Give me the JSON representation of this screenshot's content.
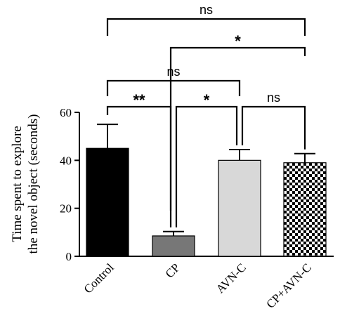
{
  "chart_data": {
    "type": "bar",
    "title": "",
    "xlabel": "",
    "ylabel_lines": [
      "Time spent to explore",
      "the novel object (seconds)"
    ],
    "ylim": [
      0,
      60
    ],
    "yticks": [
      0,
      20,
      40,
      60
    ],
    "categories": [
      "Control",
      "CP",
      "AVN-C",
      "CP+AVN-C"
    ],
    "values": [
      45,
      8.5,
      40,
      39
    ],
    "errors": [
      10,
      1.8,
      4.5,
      3.8
    ],
    "bar_colors": [
      "#000000",
      "#777777",
      "#d8d8d8",
      "checker"
    ],
    "grid": false,
    "legend": "none",
    "significance": [
      {
        "from": 0,
        "to": 1,
        "label": "**",
        "level": 1
      },
      {
        "from": 1,
        "to": 2,
        "label": "*",
        "level": 1
      },
      {
        "from": 2,
        "to": 3,
        "label": "ns",
        "level": 1
      },
      {
        "from": 0,
        "to": 2,
        "label": "ns",
        "level": 2
      },
      {
        "from": 1,
        "to": 3,
        "label": "*",
        "level": 3
      },
      {
        "from": 0,
        "to": 3,
        "label": "ns",
        "level": 4
      }
    ]
  }
}
